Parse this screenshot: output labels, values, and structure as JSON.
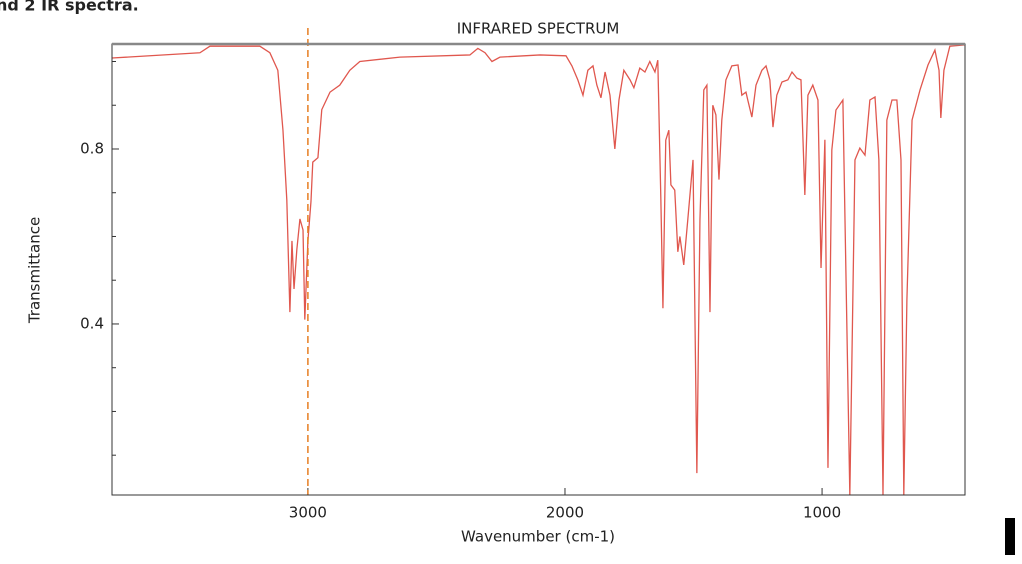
{
  "header": {
    "text": "nd 2 IR spectra."
  },
  "chart_data": {
    "type": "line",
    "title": "INFRARED SPECTRUM",
    "x_label": "Wavenumber (cm-1)",
    "y_label": "Transmittance",
    "x": [
      3762,
      3420,
      3381,
      3187,
      3148,
      3117,
      3097,
      3082,
      3070,
      3062,
      3054,
      3043,
      3031,
      3019,
      3012,
      3000,
      2988,
      2981,
      2961,
      2946,
      2914,
      2876,
      2837,
      2798,
      2642,
      2370,
      2339,
      2311,
      2284,
      2253,
      2097,
      1996,
      1973,
      1950,
      1930,
      1911,
      1891,
      1876,
      1860,
      1844,
      1825,
      1806,
      1790,
      1771,
      1747,
      1732,
      1709,
      1689,
      1670,
      1650,
      1639,
      1627,
      1619,
      1608,
      1596,
      1588,
      1573,
      1561,
      1553,
      1538,
      1522,
      1502,
      1487,
      1475,
      1460,
      1448,
      1436,
      1425,
      1413,
      1401,
      1390,
      1374,
      1351,
      1327,
      1312,
      1296,
      1289,
      1273,
      1257,
      1234,
      1218,
      1203,
      1191,
      1176,
      1156,
      1133,
      1117,
      1098,
      1082,
      1067,
      1055,
      1036,
      1016,
      1004,
      989,
      977,
      962,
      946,
      919,
      892,
      872,
      853,
      833,
      814,
      794,
      779,
      763,
      748,
      728,
      709,
      693,
      682,
      670,
      650,
      619,
      588,
      561,
      545,
      538,
      526,
      503,
      444
    ],
    "series": [
      {
        "color": "#e0574e",
        "values": [
          1.008,
          1.02,
          1.035,
          1.035,
          1.02,
          0.98,
          0.843,
          0.683,
          0.427,
          0.59,
          0.48,
          0.57,
          0.64,
          0.615,
          0.41,
          0.59,
          0.68,
          0.77,
          0.78,
          0.89,
          0.93,
          0.946,
          0.98,
          1.0,
          1.01,
          1.015,
          1.03,
          1.02,
          1.0,
          1.01,
          1.015,
          1.013,
          0.99,
          0.958,
          0.923,
          0.98,
          0.99,
          0.946,
          0.917,
          0.976,
          0.923,
          0.8,
          0.912,
          0.98,
          0.958,
          0.94,
          0.985,
          0.976,
          1.0,
          0.976,
          1.003,
          0.683,
          0.436,
          0.82,
          0.843,
          0.718,
          0.706,
          0.565,
          0.6,
          0.535,
          0.64,
          0.775,
          0.059,
          0.638,
          0.935,
          0.946,
          0.427,
          0.9,
          0.878,
          0.73,
          0.866,
          0.958,
          0.99,
          0.992,
          0.923,
          0.93,
          0.912,
          0.873,
          0.946,
          0.98,
          0.99,
          0.958,
          0.85,
          0.923,
          0.953,
          0.958,
          0.976,
          0.962,
          0.958,
          0.695,
          0.923,
          0.946,
          0.912,
          0.528,
          0.821,
          0.071,
          0.798,
          0.889,
          0.912,
          0.009,
          0.775,
          0.802,
          0.786,
          0.912,
          0.919,
          0.775,
          0.009,
          0.866,
          0.912,
          0.912,
          0.775,
          0.009,
          0.455,
          0.866,
          0.935,
          0.992,
          1.026,
          0.98,
          0.871,
          0.98,
          1.035,
          1.038
        ]
      }
    ],
    "xlim": [
      3762,
      444
    ],
    "ylim": [
      0.009,
      1.04
    ],
    "xticks": [
      3000,
      2000,
      1000
    ],
    "yticks": [
      0.4,
      0.8
    ],
    "y_minor_ticks": [
      0.1,
      0.2,
      0.3,
      0.5,
      0.6,
      0.7,
      0.9,
      1.0
    ],
    "reference_line_x": 3000,
    "reference_line_color": "#e67e22"
  }
}
